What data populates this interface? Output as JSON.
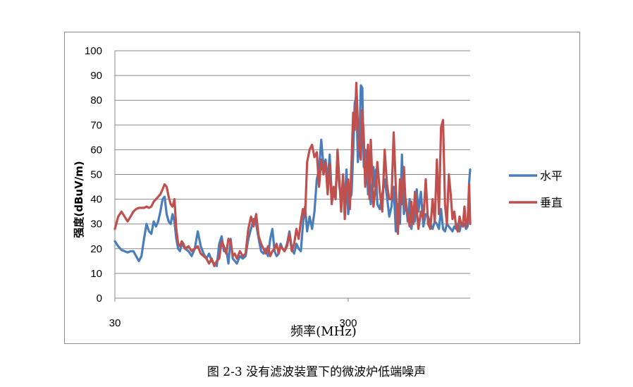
{
  "chart_data": {
    "type": "line",
    "title": "",
    "xlabel": "频率(MHz)",
    "ylabel": "强度(dBuV/m)",
    "xscale": "log",
    "xlim": [
      30,
      1000
    ],
    "ylim": [
      0,
      100
    ],
    "xticks": [
      30,
      300
    ],
    "yticks": [
      0,
      10,
      20,
      30,
      40,
      50,
      60,
      70,
      80,
      90,
      100
    ],
    "grid": "horizontal",
    "legend_position": "right",
    "series": [
      {
        "name": "水平",
        "color": "#4a7ebb",
        "x": [
          30,
          31,
          32,
          33,
          34,
          35,
          36,
          37,
          38,
          39,
          40,
          41,
          42,
          43,
          44,
          45,
          46,
          47,
          48,
          49,
          50,
          51,
          52,
          53,
          54,
          55,
          56,
          57,
          58,
          59,
          60,
          62,
          64,
          66,
          68,
          70,
          72,
          74,
          76,
          78,
          80,
          82,
          84,
          86,
          88,
          90,
          92,
          94,
          96,
          98,
          100,
          103,
          106,
          109,
          112,
          115,
          118,
          121,
          124,
          127,
          130,
          133,
          136,
          139,
          142,
          145,
          148,
          151,
          154,
          157,
          160,
          164,
          168,
          172,
          176,
          180,
          184,
          188,
          192,
          196,
          200,
          205,
          210,
          215,
          220,
          225,
          230,
          235,
          240,
          245,
          250,
          255,
          260,
          265,
          270,
          275,
          280,
          285,
          290,
          295,
          300,
          305,
          310,
          315,
          320,
          325,
          330,
          335,
          340,
          345,
          350,
          355,
          360,
          365,
          370,
          375,
          380,
          385,
          390,
          395,
          400,
          410,
          420,
          430,
          440,
          450,
          460,
          470,
          480,
          490,
          500,
          510,
          520,
          530,
          540,
          550,
          560,
          570,
          580,
          590,
          600,
          615,
          630,
          645,
          660,
          675,
          690,
          705,
          720,
          735,
          750,
          765,
          780,
          795,
          810,
          825,
          840,
          855,
          870,
          885,
          900,
          915,
          930,
          945,
          960,
          975,
          990,
          1000
        ],
        "y": [
          23,
          21,
          19.5,
          19,
          18.5,
          19,
          19,
          17,
          15,
          17,
          24,
          30,
          27,
          26,
          31,
          29,
          31,
          35,
          40,
          41,
          34,
          31,
          30,
          34,
          31,
          24,
          20,
          19,
          22,
          21,
          20,
          19,
          17,
          20,
          27,
          21,
          18,
          16,
          18,
          15,
          14,
          13,
          22,
          25,
          19,
          20,
          14,
          24,
          16,
          15,
          14,
          17,
          16,
          17,
          24,
          28,
          32,
          30,
          24,
          19,
          18,
          20,
          17,
          24,
          28,
          19,
          17,
          18,
          22,
          20,
          19,
          22,
          27,
          20,
          18,
          22,
          20,
          19,
          30,
          37,
          27,
          33,
          28,
          35,
          48,
          52,
          64,
          53,
          56,
          47,
          58,
          42,
          41,
          43,
          55,
          45,
          41,
          48,
          38,
          52,
          34,
          40,
          42,
          58,
          79,
          81,
          55,
          63,
          86,
          85,
          53,
          60,
          58,
          42,
          48,
          38,
          46,
          53,
          45,
          52,
          38,
          36,
          42,
          48,
          41,
          33,
          37,
          45,
          27,
          38,
          30,
          58,
          34,
          40,
          31,
          40,
          28,
          36,
          31,
          44,
          35,
          43,
          29,
          34,
          33,
          30,
          28,
          31,
          30,
          28,
          36,
          28,
          27,
          30,
          29,
          28,
          27,
          29,
          28,
          30,
          27,
          30,
          29,
          30,
          28,
          29,
          47,
          52
        ]
      },
      {
        "name": "垂直",
        "color": "#c0504d",
        "x": [
          30,
          31,
          32,
          33,
          34,
          35,
          36,
          37,
          38,
          39,
          40,
          41,
          42,
          43,
          44,
          45,
          46,
          47,
          48,
          49,
          50,
          51,
          52,
          53,
          54,
          55,
          56,
          57,
          58,
          59,
          60,
          62,
          64,
          66,
          68,
          70,
          72,
          74,
          76,
          78,
          80,
          82,
          84,
          86,
          88,
          90,
          92,
          94,
          96,
          98,
          100,
          103,
          106,
          109,
          112,
          115,
          118,
          121,
          124,
          127,
          130,
          133,
          136,
          139,
          142,
          145,
          148,
          151,
          154,
          157,
          160,
          164,
          168,
          172,
          176,
          180,
          184,
          188,
          192,
          196,
          200,
          205,
          210,
          215,
          220,
          225,
          230,
          235,
          240,
          245,
          250,
          255,
          260,
          265,
          270,
          275,
          280,
          285,
          290,
          295,
          300,
          305,
          310,
          315,
          320,
          325,
          330,
          335,
          340,
          345,
          350,
          355,
          360,
          365,
          370,
          375,
          380,
          385,
          390,
          395,
          400,
          410,
          420,
          430,
          440,
          450,
          460,
          470,
          480,
          490,
          500,
          510,
          520,
          530,
          540,
          550,
          560,
          570,
          580,
          590,
          600,
          615,
          630,
          645,
          660,
          675,
          690,
          705,
          720,
          735,
          750,
          765,
          780,
          795,
          810,
          825,
          840,
          855,
          870,
          885,
          900,
          915,
          930,
          945,
          960,
          975,
          990,
          1000
        ],
        "y": [
          28,
          33,
          35,
          33,
          31,
          33,
          35,
          36,
          36.5,
          36.5,
          36.5,
          37,
          36.5,
          37,
          39,
          40,
          41,
          42,
          44,
          46,
          45,
          41,
          38,
          37,
          40,
          28,
          22,
          21,
          23,
          22,
          20,
          21,
          19,
          20,
          21,
          18,
          17,
          16,
          14,
          16,
          13,
          15,
          16,
          23,
          21,
          18,
          24,
          23,
          17,
          18,
          16,
          19,
          17,
          18,
          28,
          33,
          29,
          34,
          25,
          22,
          20,
          18,
          21,
          17,
          19,
          20,
          22,
          18,
          21,
          20,
          19,
          21,
          26,
          19,
          22,
          28,
          24,
          31,
          36,
          33,
          55,
          60,
          62,
          57,
          59,
          45,
          56,
          50,
          55,
          42,
          54,
          38,
          45,
          40,
          60,
          48,
          35,
          50,
          32,
          45,
          48,
          36,
          55,
          75,
          68,
          87,
          70,
          60,
          56,
          76,
          65,
          45,
          55,
          62,
          40,
          64,
          50,
          37,
          42,
          46,
          55,
          43,
          35,
          60,
          46,
          40,
          40,
          67,
          45,
          26,
          48,
          38,
          53,
          36,
          34,
          29,
          39,
          30,
          43,
          36,
          28,
          35,
          32,
          48,
          30,
          28,
          40,
          31,
          56,
          34,
          69,
          72,
          38,
          30,
          50,
          42,
          32,
          35,
          29,
          27,
          33,
          30,
          29,
          37,
          29,
          31,
          46,
          30
        ]
      }
    ]
  },
  "caption": "图 2-3  没有滤波装置下的微波炉低端噪声"
}
